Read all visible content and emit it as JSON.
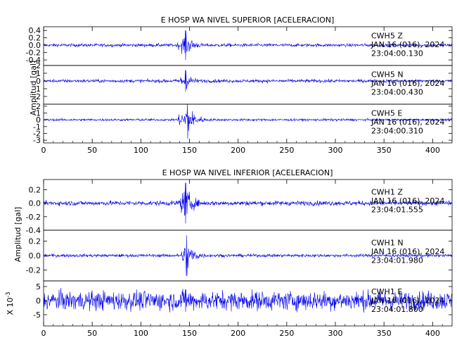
{
  "chart_data": [
    {
      "type": "line",
      "title": "E HOSP WA NIVEL SUPERIOR [ACELERACION]",
      "ylabel": "Amplitud [gal]",
      "xlim": [
        0,
        420
      ],
      "x_ticks": [
        "0",
        "50",
        "100",
        "150",
        "200",
        "250",
        "300",
        "350",
        "400"
      ],
      "grid": false,
      "traces": [
        {
          "station": "CWH5",
          "component": "Z",
          "date": "JAN 16 (016), 2024",
          "time": "23:04:00.130",
          "ylim": [
            -0.55,
            0.5
          ],
          "y_ticks": [
            "0.4",
            "0.2",
            "0.0",
            "-0.2",
            "-0.4"
          ],
          "y_tick_values": [
            0.4,
            0.2,
            0.0,
            -0.2,
            -0.4
          ],
          "noise_level": 0.03,
          "onset": 135,
          "peak_time": 146,
          "peak_amplitude": 0.4
        },
        {
          "station": "CWH5",
          "component": "N",
          "date": "JAN 16 (016), 2024",
          "time": "23:04:00.430",
          "ylim": [
            -3,
            2
          ],
          "y_ticks": [
            "2",
            "1",
            "0",
            "-1",
            "-2"
          ],
          "y_tick_values": [
            2,
            1,
            0,
            -1,
            -2
          ],
          "noise_level": 0.15,
          "onset": 135,
          "peak_time": 146,
          "peak_amplitude": 1.4
        },
        {
          "station": "CWH5",
          "component": "E",
          "date": "JAN 16 (016), 2024",
          "time": "23:04:00.310",
          "ylim": [
            -3.4,
            2.3
          ],
          "y_ticks": [
            "2",
            "1",
            "0",
            "-1",
            "-2",
            "-3"
          ],
          "y_tick_values": [
            2,
            1,
            0,
            -1,
            -2,
            -3
          ],
          "noise_level": 0.12,
          "onset": 135,
          "peak_time": 148,
          "peak_amplitude": 2.8
        }
      ]
    },
    {
      "type": "line",
      "title": "E HOSP WA NIVEL INFERIOR [ACELERACION]",
      "ylabel": "Amplitud [gal]",
      "xlim": [
        0,
        420
      ],
      "x_ticks": [
        "0",
        "50",
        "100",
        "150",
        "200",
        "250",
        "300",
        "350",
        "400"
      ],
      "grid": false,
      "traces": [
        {
          "station": "CWH1",
          "component": "Z",
          "date": "JAN 16 (016), 2024",
          "time": "23:04:01.555",
          "ylim": [
            -0.4,
            0.35
          ],
          "y_ticks": [
            "0.2",
            "0.0",
            "-0.2",
            "-0.4"
          ],
          "y_tick_values": [
            0.2,
            0.0,
            -0.2,
            -0.4
          ],
          "noise_level": 0.025,
          "onset": 135,
          "peak_time": 146,
          "peak_amplitude": 0.3
        },
        {
          "station": "CWH1",
          "component": "N",
          "date": "JAN 16 (016), 2024",
          "time": "23:04:01.980",
          "ylim": [
            -0.35,
            0.35
          ],
          "y_ticks": [
            "0.2",
            "0.0",
            "-0.2"
          ],
          "y_tick_values": [
            0.2,
            0.0,
            -0.2
          ],
          "noise_level": 0.015,
          "onset": 140,
          "peak_time": 147,
          "peak_amplitude": 0.28
        },
        {
          "station": "CWH1",
          "component": "E",
          "date": "JAN 16 (016), 2024",
          "time": "23:04:01.800",
          "ylim": [
            -9,
            7
          ],
          "y_ticks": [
            "5",
            "0",
            "-5"
          ],
          "y_tick_values": [
            5,
            0,
            -5
          ],
          "y_scale_label": "X 10^-3",
          "noise_level": 2.4,
          "onset": 135,
          "peak_time": 146,
          "peak_amplitude": 4
        }
      ]
    }
  ]
}
